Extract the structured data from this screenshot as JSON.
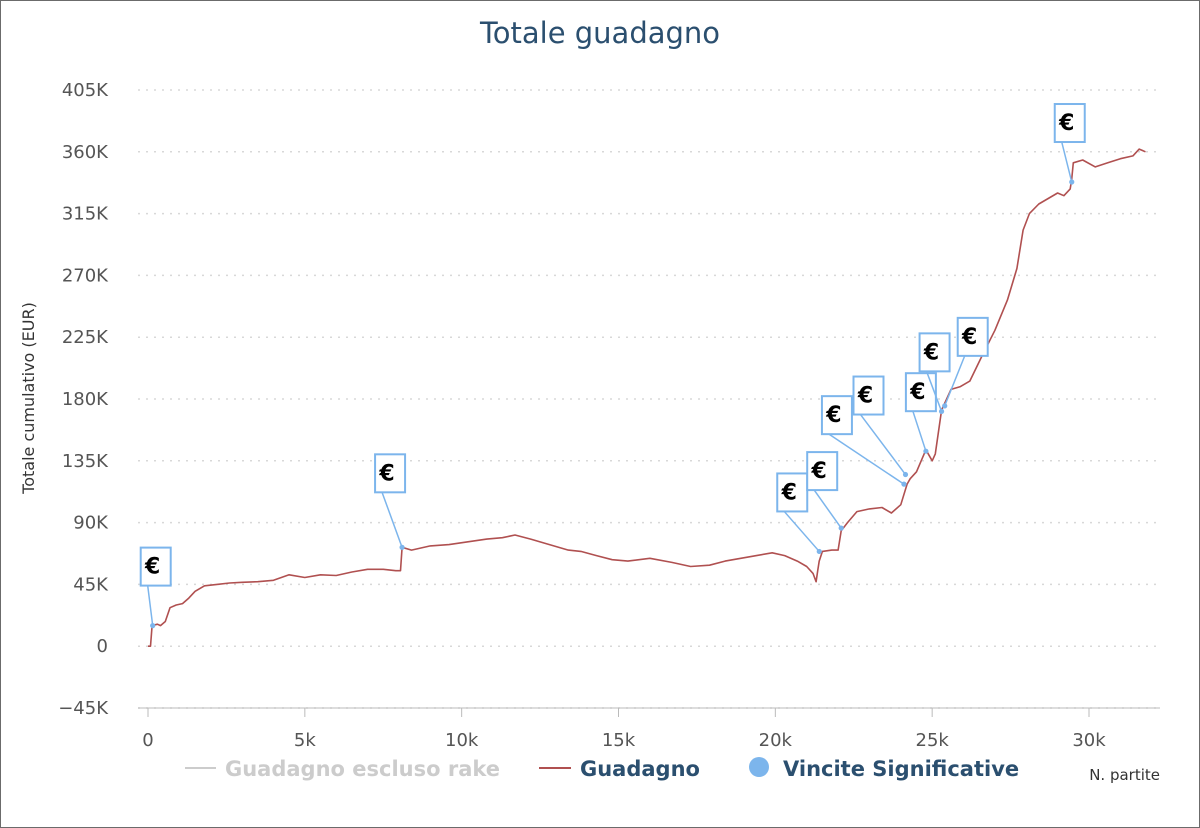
{
  "chart_data": {
    "type": "line",
    "title": "Totale guadagno",
    "xlabel": "N. partite",
    "ylabel": "Totale cumulativo (EUR)",
    "xlim": [
      0,
      32000
    ],
    "ylim": [
      -45000,
      405000
    ],
    "x_ticks": [
      {
        "value": 0,
        "label": "0"
      },
      {
        "value": 5000,
        "label": "5k"
      },
      {
        "value": 10000,
        "label": "10k"
      },
      {
        "value": 15000,
        "label": "15k"
      },
      {
        "value": 20000,
        "label": "20k"
      },
      {
        "value": 25000,
        "label": "25k"
      },
      {
        "value": 30000,
        "label": "30k"
      }
    ],
    "y_ticks": [
      {
        "value": -45000,
        "label": "−45K"
      },
      {
        "value": 0,
        "label": "0"
      },
      {
        "value": 45000,
        "label": "45K"
      },
      {
        "value": 90000,
        "label": "90K"
      },
      {
        "value": 135000,
        "label": "135K"
      },
      {
        "value": 180000,
        "label": "180K"
      },
      {
        "value": 225000,
        "label": "225K"
      },
      {
        "value": 270000,
        "label": "270K"
      },
      {
        "value": 315000,
        "label": "315K"
      },
      {
        "value": 360000,
        "label": "360K"
      },
      {
        "value": 405000,
        "label": "405K"
      }
    ],
    "grid": "horizontal-dotted",
    "legend_position": "bottom",
    "series": [
      {
        "name": "Guadagno escluso rake",
        "color": "#cccccc",
        "hidden": true,
        "points": []
      },
      {
        "name": "Guadagno",
        "color": "#b05050",
        "points": [
          [
            0,
            0
          ],
          [
            80,
            0
          ],
          [
            130,
            15000
          ],
          [
            300,
            16000
          ],
          [
            400,
            15000
          ],
          [
            550,
            18000
          ],
          [
            700,
            28000
          ],
          [
            900,
            30000
          ],
          [
            1100,
            31000
          ],
          [
            1300,
            35000
          ],
          [
            1500,
            40000
          ],
          [
            1800,
            44000
          ],
          [
            2200,
            45000
          ],
          [
            2600,
            46000
          ],
          [
            3000,
            46500
          ],
          [
            3500,
            47000
          ],
          [
            4000,
            48000
          ],
          [
            4500,
            52000
          ],
          [
            5000,
            50000
          ],
          [
            5500,
            52000
          ],
          [
            6000,
            51500
          ],
          [
            6500,
            54000
          ],
          [
            7000,
            56000
          ],
          [
            7500,
            56000
          ],
          [
            7900,
            55000
          ],
          [
            8050,
            55000
          ],
          [
            8100,
            72000
          ],
          [
            8400,
            70000
          ],
          [
            9000,
            73000
          ],
          [
            9600,
            74000
          ],
          [
            10200,
            76000
          ],
          [
            10800,
            78000
          ],
          [
            11300,
            79000
          ],
          [
            11700,
            81000
          ],
          [
            12200,
            78000
          ],
          [
            12800,
            74000
          ],
          [
            13400,
            70000
          ],
          [
            13800,
            69000
          ],
          [
            14300,
            66000
          ],
          [
            14800,
            63000
          ],
          [
            15300,
            62000
          ],
          [
            16000,
            64000
          ],
          [
            16700,
            61000
          ],
          [
            17300,
            58000
          ],
          [
            17900,
            59000
          ],
          [
            18400,
            62000
          ],
          [
            18900,
            64000
          ],
          [
            19400,
            66000
          ],
          [
            19900,
            68000
          ],
          [
            20300,
            66000
          ],
          [
            20700,
            62000
          ],
          [
            21000,
            58000
          ],
          [
            21200,
            53000
          ],
          [
            21300,
            47000
          ],
          [
            21350,
            55000
          ],
          [
            21400,
            62000
          ],
          [
            21500,
            69000
          ],
          [
            21800,
            70000
          ],
          [
            22000,
            70000
          ],
          [
            22100,
            84000
          ],
          [
            22300,
            90000
          ],
          [
            22600,
            98000
          ],
          [
            23000,
            100000
          ],
          [
            23400,
            101000
          ],
          [
            23700,
            97000
          ],
          [
            24000,
            103000
          ],
          [
            24200,
            118000
          ],
          [
            24300,
            122000
          ],
          [
            24500,
            127000
          ],
          [
            24800,
            143000
          ],
          [
            25000,
            135000
          ],
          [
            25100,
            140000
          ],
          [
            25300,
            172000
          ],
          [
            25600,
            187000
          ],
          [
            25900,
            189000
          ],
          [
            26200,
            193000
          ],
          [
            26600,
            212000
          ],
          [
            27000,
            230000
          ],
          [
            27400,
            252000
          ],
          [
            27700,
            275000
          ],
          [
            27900,
            303000
          ],
          [
            28100,
            315000
          ],
          [
            28400,
            322000
          ],
          [
            28700,
            326000
          ],
          [
            29000,
            330000
          ],
          [
            29200,
            328000
          ],
          [
            29400,
            333000
          ],
          [
            29450,
            340000
          ],
          [
            29500,
            352000
          ],
          [
            29800,
            354000
          ],
          [
            30200,
            349000
          ],
          [
            30600,
            352000
          ],
          [
            31000,
            355000
          ],
          [
            31400,
            357000
          ],
          [
            31600,
            362000
          ],
          [
            31800,
            360000
          ]
        ]
      }
    ],
    "markers": {
      "name": "Vincite Significative",
      "color": "#7cb5ec",
      "symbol": "€",
      "points": [
        [
          150,
          15000
        ],
        [
          8100,
          72000
        ],
        [
          21400,
          69000
        ],
        [
          22100,
          86000
        ],
        [
          24100,
          118000
        ],
        [
          24150,
          125000
        ],
        [
          24800,
          142000
        ],
        [
          25300,
          171000
        ],
        [
          25400,
          175000
        ],
        [
          29450,
          338000
        ]
      ]
    }
  }
}
